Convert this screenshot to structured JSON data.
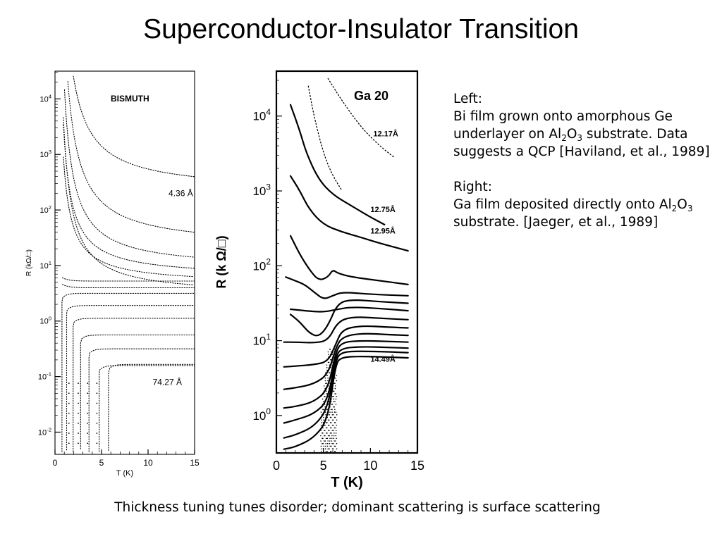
{
  "slide": {
    "title": "Superconductor-Insulator Transition",
    "caption": "Thickness tuning tunes disorder; dominant scattering is surface scattering"
  },
  "notes": {
    "left_heading": "Left:",
    "left_text_1": "Bi film grown onto amorphous Ge underlayer on Al",
    "left_sub_1": "2",
    "left_text_2": "O",
    "left_sub_2": "3",
    "left_text_3": " substrate. Data suggests a QCP [Haviland, et al., 1989]",
    "right_heading": "Right:",
    "right_text_1": "Ga film deposited directly onto Al",
    "right_sub_1": "2",
    "right_text_2": "O",
    "right_sub_2": "3",
    "right_text_3": " substrate. [Jaeger, et al., 1989]"
  },
  "chart_data": [
    {
      "type": "line",
      "title": "BISMUTH",
      "xlabel": "T (K)",
      "ylabel": "R (kΩ/□)",
      "xlim": [
        0,
        15
      ],
      "ylim_log10": [
        -2.4,
        4.5
      ],
      "x_ticks": [
        "0",
        "5",
        "10",
        "15"
      ],
      "y_ticks": [
        {
          "base": "10",
          "exp": "4",
          "log": 4
        },
        {
          "base": "10",
          "exp": "3",
          "log": 3
        },
        {
          "base": "10",
          "exp": "2",
          "log": 2
        },
        {
          "base": "10",
          "exp": "1",
          "log": 1
        },
        {
          "base": "10",
          "exp": "0",
          "log": 0
        },
        {
          "base": "10",
          "exp": "-1",
          "log": -1
        },
        {
          "base": "10",
          "exp": "-2",
          "log": -2
        }
      ],
      "annotations": [
        {
          "text": "4.36 Å",
          "x": 12.2,
          "log": 2.25
        },
        {
          "text": "74.27 Å",
          "x": 10.5,
          "log": -1.15
        }
      ],
      "series": [
        {
          "name": "4.36 Å",
          "kind": "insulating",
          "log_at_15K": 2.6,
          "exponent": 0.5
        },
        {
          "name": "",
          "kind": "insulating",
          "log_at_15K": 1.6,
          "exponent": 0.5
        },
        {
          "name": "",
          "kind": "insulating",
          "log_at_15K": 1.15,
          "exponent": 0.4
        },
        {
          "name": "",
          "kind": "insulating",
          "log_at_15K": 0.65,
          "exponent": 0.35
        },
        {
          "name": "",
          "kind": "insulating",
          "log_at_15K": 0.95,
          "exponent": 0.3
        },
        {
          "name": "",
          "kind": "insulating",
          "log_at_15K": 0.8,
          "exponent": 0.25
        },
        {
          "name": "",
          "kind": "flat",
          "log_at_15K": 0.72
        },
        {
          "name": "",
          "kind": "flat",
          "log_at_15K": 0.6
        },
        {
          "name": "",
          "kind": "superconducting",
          "log_at_15K": 0.5,
          "Tc": 0.8
        },
        {
          "name": "",
          "kind": "superconducting",
          "log_at_15K": 0.28,
          "Tc": 1.3
        },
        {
          "name": "",
          "kind": "superconducting",
          "log_at_15K": 0.05,
          "Tc": 2.0
        },
        {
          "name": "",
          "kind": "superconducting",
          "log_at_15K": -0.25,
          "Tc": 2.8
        },
        {
          "name": "",
          "kind": "superconducting",
          "log_at_15K": -0.5,
          "Tc": 3.7
        },
        {
          "name": "",
          "kind": "superconducting",
          "log_at_15K": -0.8,
          "Tc": 4.8
        },
        {
          "name": "74.27 Å",
          "kind": "superconducting",
          "log_at_15K": -0.78,
          "Tc": 5.8
        }
      ]
    },
    {
      "type": "line",
      "title": "Ga 20",
      "xlabel": "T (K)",
      "ylabel": "R (k Ω/□)",
      "xlim": [
        0,
        15
      ],
      "ylim_log10": [
        -0.5,
        4.6
      ],
      "x_ticks": [
        "0",
        "5",
        "10",
        "15"
      ],
      "y_ticks": [
        {
          "base": "10",
          "exp": "4",
          "log": 4
        },
        {
          "base": "10",
          "exp": "3",
          "log": 3
        },
        {
          "base": "10",
          "exp": "2",
          "log": 2
        },
        {
          "base": "10",
          "exp": "1",
          "log": 1
        },
        {
          "base": "10",
          "exp": "0",
          "log": 0
        }
      ],
      "annotations": [
        {
          "text": "12.17Å",
          "x": 10.3,
          "log": 3.73
        },
        {
          "text": "12.75Å",
          "x": 10.0,
          "log": 2.72
        },
        {
          "text": "12.95Å",
          "x": 10.0,
          "log": 2.43
        },
        {
          "text": "14.49Å",
          "x": 10.0,
          "log": 0.72
        }
      ],
      "series": [
        {
          "name": "12.17Å",
          "kind": "insulating",
          "points": [
            [
              5.5,
              4.5
            ],
            [
              7,
              4.2
            ],
            [
              9,
              3.85
            ],
            [
              11,
              3.6
            ],
            [
              12.5,
              3.45
            ]
          ]
        },
        {
          "name": "",
          "kind": "insulating",
          "points": [
            [
              3.4,
              4.4
            ],
            [
              4,
              4.0
            ],
            [
              5,
              3.5
            ],
            [
              6,
              3.2
            ],
            [
              7,
              3.0
            ]
          ]
        },
        {
          "name": "12.75Å",
          "kind": "insulating",
          "points": [
            [
              1.5,
              4.15
            ],
            [
              2.5,
              3.8
            ],
            [
              3.2,
              3.5
            ],
            [
              4.5,
              3.15
            ],
            [
              6,
              2.95
            ],
            [
              8,
              2.8
            ],
            [
              10,
              2.65
            ],
            [
              11.5,
              2.55
            ]
          ]
        },
        {
          "name": "12.95Å",
          "kind": "insulating",
          "points": [
            [
              1.5,
              3.2
            ],
            [
              2.5,
              3.0
            ],
            [
              3.5,
              2.75
            ],
            [
              5,
              2.55
            ],
            [
              7,
              2.45
            ],
            [
              9,
              2.38
            ],
            [
              11,
              2.3
            ],
            [
              14,
              2.2
            ]
          ]
        },
        {
          "name": "",
          "kind": "reentrant",
          "points": [
            [
              1.5,
              2.4
            ],
            [
              2.5,
              2.15
            ],
            [
              3.5,
              1.95
            ],
            [
              4.5,
              1.8
            ],
            [
              5.5,
              1.85
            ],
            [
              6,
              1.95
            ],
            [
              6.5,
              1.9
            ],
            [
              8,
              1.85
            ],
            [
              11,
              1.8
            ],
            [
              14,
              1.75
            ]
          ]
        },
        {
          "name": "",
          "kind": "reentrant",
          "points": [
            [
              1,
              1.85
            ],
            [
              2,
              1.8
            ],
            [
              3,
              1.75
            ],
            [
              4,
              1.65
            ],
            [
              5,
              1.55
            ],
            [
              6,
              1.6
            ],
            [
              7,
              1.65
            ],
            [
              10,
              1.62
            ],
            [
              14,
              1.6
            ]
          ]
        },
        {
          "name": "",
          "kind": "reentrant",
          "points": [
            [
              1.5,
              1.35
            ],
            [
              2.5,
              1.25
            ],
            [
              3.5,
              1.1
            ],
            [
              4.5,
              1.05
            ],
            [
              5.5,
              1.2
            ],
            [
              6.5,
              1.5
            ],
            [
              8,
              1.55
            ],
            [
              11,
              1.52
            ],
            [
              14,
              1.5
            ]
          ]
        },
        {
          "name": "",
          "kind": "flat",
          "points": [
            [
              1.5,
              1.42
            ],
            [
              3,
              1.4
            ],
            [
              5,
              1.38
            ],
            [
              6.5,
              1.42
            ],
            [
              8,
              1.45
            ],
            [
              11,
              1.43
            ],
            [
              14,
              1.4
            ]
          ]
        },
        {
          "name": "",
          "kind": "flat",
          "points": [
            [
              0.8,
              0.98
            ],
            [
              2,
              0.98
            ],
            [
              4,
              0.97
            ],
            [
              5.5,
              1.0
            ],
            [
              6.5,
              1.25
            ],
            [
              8,
              1.32
            ],
            [
              11,
              1.3
            ],
            [
              14,
              1.28
            ]
          ]
        },
        {
          "name": "",
          "kind": "superconducting",
          "points": [
            [
              0.8,
              0.65
            ],
            [
              2,
              0.66
            ],
            [
              4,
              0.68
            ],
            [
              5.5,
              0.72
            ],
            [
              6.3,
              0.95
            ],
            [
              7,
              1.15
            ],
            [
              9,
              1.2
            ],
            [
              12,
              1.18
            ],
            [
              14,
              1.17
            ]
          ]
        },
        {
          "name": "",
          "kind": "superconducting",
          "points": [
            [
              0.8,
              0.35
            ],
            [
              2,
              0.37
            ],
            [
              4,
              0.42
            ],
            [
              5.5,
              0.55
            ],
            [
              6.3,
              0.9
            ],
            [
              7,
              1.05
            ],
            [
              9,
              1.1
            ],
            [
              12,
              1.08
            ],
            [
              14,
              1.07
            ]
          ]
        },
        {
          "name": "",
          "kind": "superconducting",
          "points": [
            [
              0.8,
              0.1
            ],
            [
              2,
              0.12
            ],
            [
              4,
              0.18
            ],
            [
              5.5,
              0.35
            ],
            [
              6.3,
              0.85
            ],
            [
              7,
              0.98
            ],
            [
              9,
              1.0
            ],
            [
              12,
              0.99
            ],
            [
              14,
              0.98
            ]
          ]
        },
        {
          "name": "",
          "kind": "superconducting",
          "points": [
            [
              0.8,
              -0.1
            ],
            [
              2,
              -0.06
            ],
            [
              4,
              0.02
            ],
            [
              5.5,
              0.2
            ],
            [
              6.3,
              0.8
            ],
            [
              7,
              0.9
            ],
            [
              9,
              0.92
            ],
            [
              12,
              0.91
            ],
            [
              14,
              0.9
            ]
          ]
        },
        {
          "name": "",
          "kind": "superconducting",
          "points": [
            [
              0.8,
              -0.3
            ],
            [
              2,
              -0.26
            ],
            [
              4,
              -0.15
            ],
            [
              5.5,
              0.1
            ],
            [
              6.3,
              0.75
            ],
            [
              7,
              0.85
            ],
            [
              9,
              0.86
            ],
            [
              12,
              0.85
            ],
            [
              14,
              0.84
            ]
          ]
        },
        {
          "name": "14.49Å",
          "kind": "superconducting",
          "points": [
            [
              0.8,
              -0.45
            ],
            [
              2,
              -0.42
            ],
            [
              4,
              -0.3
            ],
            [
              5.5,
              -0.05
            ],
            [
              6.3,
              0.7
            ],
            [
              7,
              0.78
            ],
            [
              9,
              0.79
            ],
            [
              12,
              0.78
            ],
            [
              14,
              0.77
            ]
          ]
        }
      ]
    }
  ]
}
